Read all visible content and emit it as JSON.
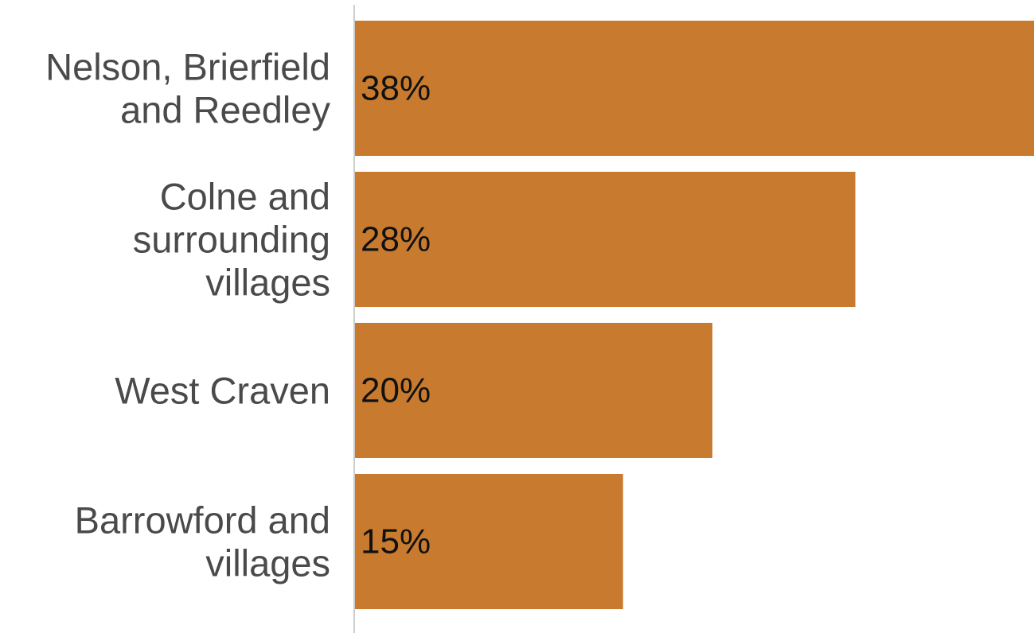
{
  "chart_data": {
    "type": "bar",
    "orientation": "horizontal",
    "categories": [
      [
        "Nelson, Brierfield",
        "and Reedley"
      ],
      [
        "Colne and",
        "surrounding",
        "villages"
      ],
      [
        "West Craven"
      ],
      [
        "Barrowford and",
        "villages"
      ]
    ],
    "values": [
      38,
      28,
      20,
      15
    ],
    "value_labels": [
      "38%",
      "28%",
      "20%",
      "15%"
    ],
    "xlim": [
      0,
      38
    ],
    "bar_color": "#c87a2e",
    "axis_color": "#cccccc",
    "grid": false,
    "legend": "none",
    "title": "",
    "xlabel": "",
    "ylabel": ""
  }
}
